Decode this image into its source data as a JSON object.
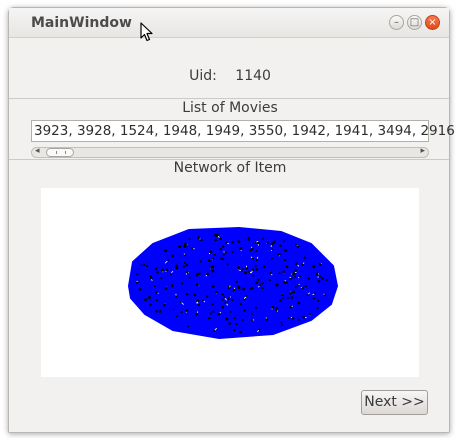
{
  "window": {
    "title": "MainWindow",
    "controls": {
      "minimize": "–",
      "maximize": "□",
      "close": "×"
    }
  },
  "uid": {
    "label": "Uid:",
    "value": "1140"
  },
  "movies": {
    "label": "List of Movies",
    "value": "3923, 3928, 1524, 1948, 1949, 3550, 1942, 1941, 3494, 2916"
  },
  "network": {
    "label": "Network of Item",
    "fill_color": "#0000ff",
    "node_color": "#000000",
    "edge_color": "#ffffff"
  },
  "buttons": {
    "next": "Next >>"
  }
}
